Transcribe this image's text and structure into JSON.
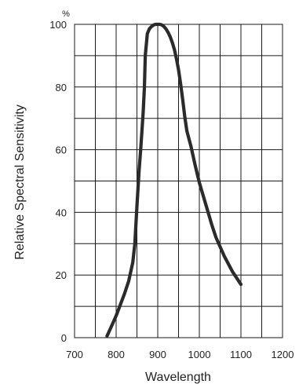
{
  "chart_data": {
    "type": "line",
    "title": "",
    "xlabel": "Wavelength",
    "ylabel": "Relative Spectral Sensitivity",
    "y_unit": "%",
    "xlim": [
      700,
      1200
    ],
    "ylim": [
      0,
      100
    ],
    "x_ticks": [
      700,
      800,
      900,
      1000,
      1100,
      1200
    ],
    "y_ticks": [
      0,
      20,
      40,
      60,
      80,
      100
    ],
    "x_tick_labels": [
      "700",
      "800",
      "900",
      "1000",
      "1100",
      "1200"
    ],
    "y_tick_labels": [
      "0",
      "20",
      "40",
      "60",
      "80",
      "100"
    ],
    "grid": true,
    "grid_x_step": 50,
    "grid_y_step": 10,
    "legend": "none",
    "colors": {
      "line": "#2b2b2b",
      "grid": "#1a1a1a",
      "text": "#222222"
    },
    "series": [
      {
        "x": [
          778,
          790,
          800,
          810,
          820,
          830,
          840,
          845,
          850,
          855,
          860,
          865,
          868,
          870,
          875,
          880,
          885,
          890,
          895,
          900,
          905,
          910,
          915,
          920,
          925,
          930,
          935,
          940,
          945,
          950,
          955,
          960,
          965,
          970,
          980,
          990,
          1000,
          1010,
          1020,
          1030,
          1040,
          1050,
          1060,
          1070,
          1080,
          1090,
          1100
        ],
        "y": [
          0.5,
          4,
          7,
          10.5,
          14,
          18,
          24,
          30,
          42,
          53,
          62,
          72,
          80,
          90,
          97,
          98.6,
          99.3,
          99.8,
          100,
          100,
          100,
          99.8,
          99.3,
          98.5,
          97.4,
          96,
          94.2,
          92,
          89,
          85.5,
          81,
          76,
          70.5,
          66,
          61,
          55,
          49.5,
          45,
          40.5,
          36,
          32,
          29,
          26,
          23.5,
          21,
          19,
          17
        ]
      }
    ]
  }
}
